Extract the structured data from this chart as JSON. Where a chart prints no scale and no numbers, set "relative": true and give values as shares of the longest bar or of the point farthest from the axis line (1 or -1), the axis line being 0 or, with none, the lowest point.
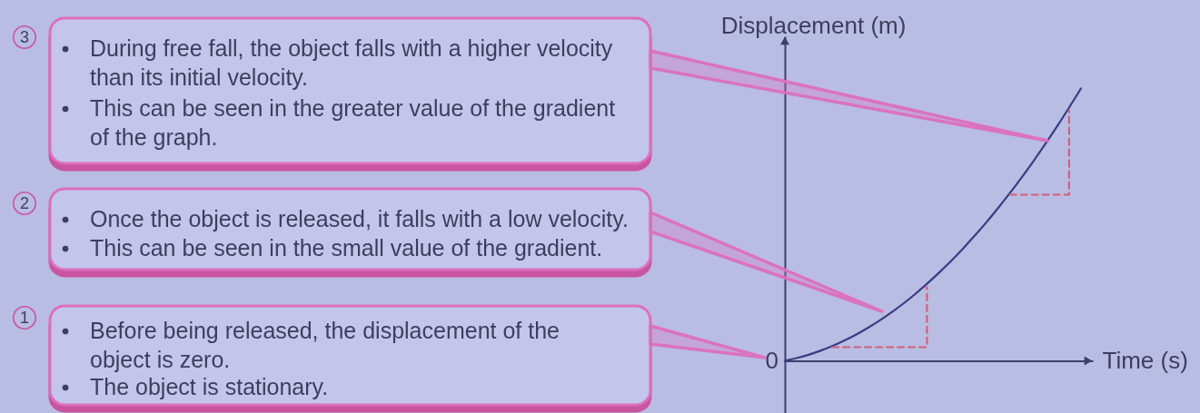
{
  "chart_data": {
    "type": "line",
    "relative": true,
    "xlabel": "Time (s)",
    "ylabel": "Displacement (m)",
    "categories": [
      null,
      null,
      null,
      null,
      null,
      null,
      null,
      null,
      null,
      null,
      null,
      null,
      null,
      null,
      null,
      null,
      null,
      null,
      null,
      null,
      null,
      null,
      null,
      null,
      null,
      null
    ],
    "series": [
      {
        "color": "#383c84",
        "values": [
          0,
          0.01,
          0.022,
          0.037,
          0.054,
          0.074,
          0.096,
          0.121,
          0.148,
          0.178,
          0.21,
          0.245,
          0.283,
          0.323,
          0.365,
          0.41,
          0.458,
          0.508,
          0.561,
          0.616,
          0.674,
          0.734,
          0.797,
          0.862,
          0.93,
          1
        ]
      },
      {
        "type": "step",
        "color": "#d0607c",
        "line_style": "dashed",
        "values": [
          null,
          null,
          null,
          null,
          0.05,
          0.05,
          0.05,
          0.05,
          0.05,
          0.05,
          0.05,
          0.05,
          0.27,
          null,
          null,
          null,
          null,
          null,
          null,
          null,
          null,
          null,
          null,
          null,
          null,
          null
        ]
      },
      {
        "type": "step",
        "color": "#d0607c",
        "line_style": "dashed",
        "values": [
          null,
          null,
          null,
          null,
          null,
          null,
          null,
          null,
          null,
          null,
          null,
          null,
          null,
          null,
          null,
          null,
          null,
          null,
          null,
          0.61,
          0.61,
          0.61,
          0.61,
          0.61,
          0.92,
          null
        ]
      }
    ],
    "annotations": [
      "3",
      "During free fall, the object falls with a higher velocity\nthan its initial velocity.",
      "This can be seen in the greater value of the gradient\nof the graph.",
      "2",
      "Once the object is released, it falls with a low velocity.",
      "This can be seen in the small value of the gradient.",
      "1",
      "Before being released, the displacement of the\nobject is zero.",
      "The object is stationary.",
      "0"
    ]
  }
}
